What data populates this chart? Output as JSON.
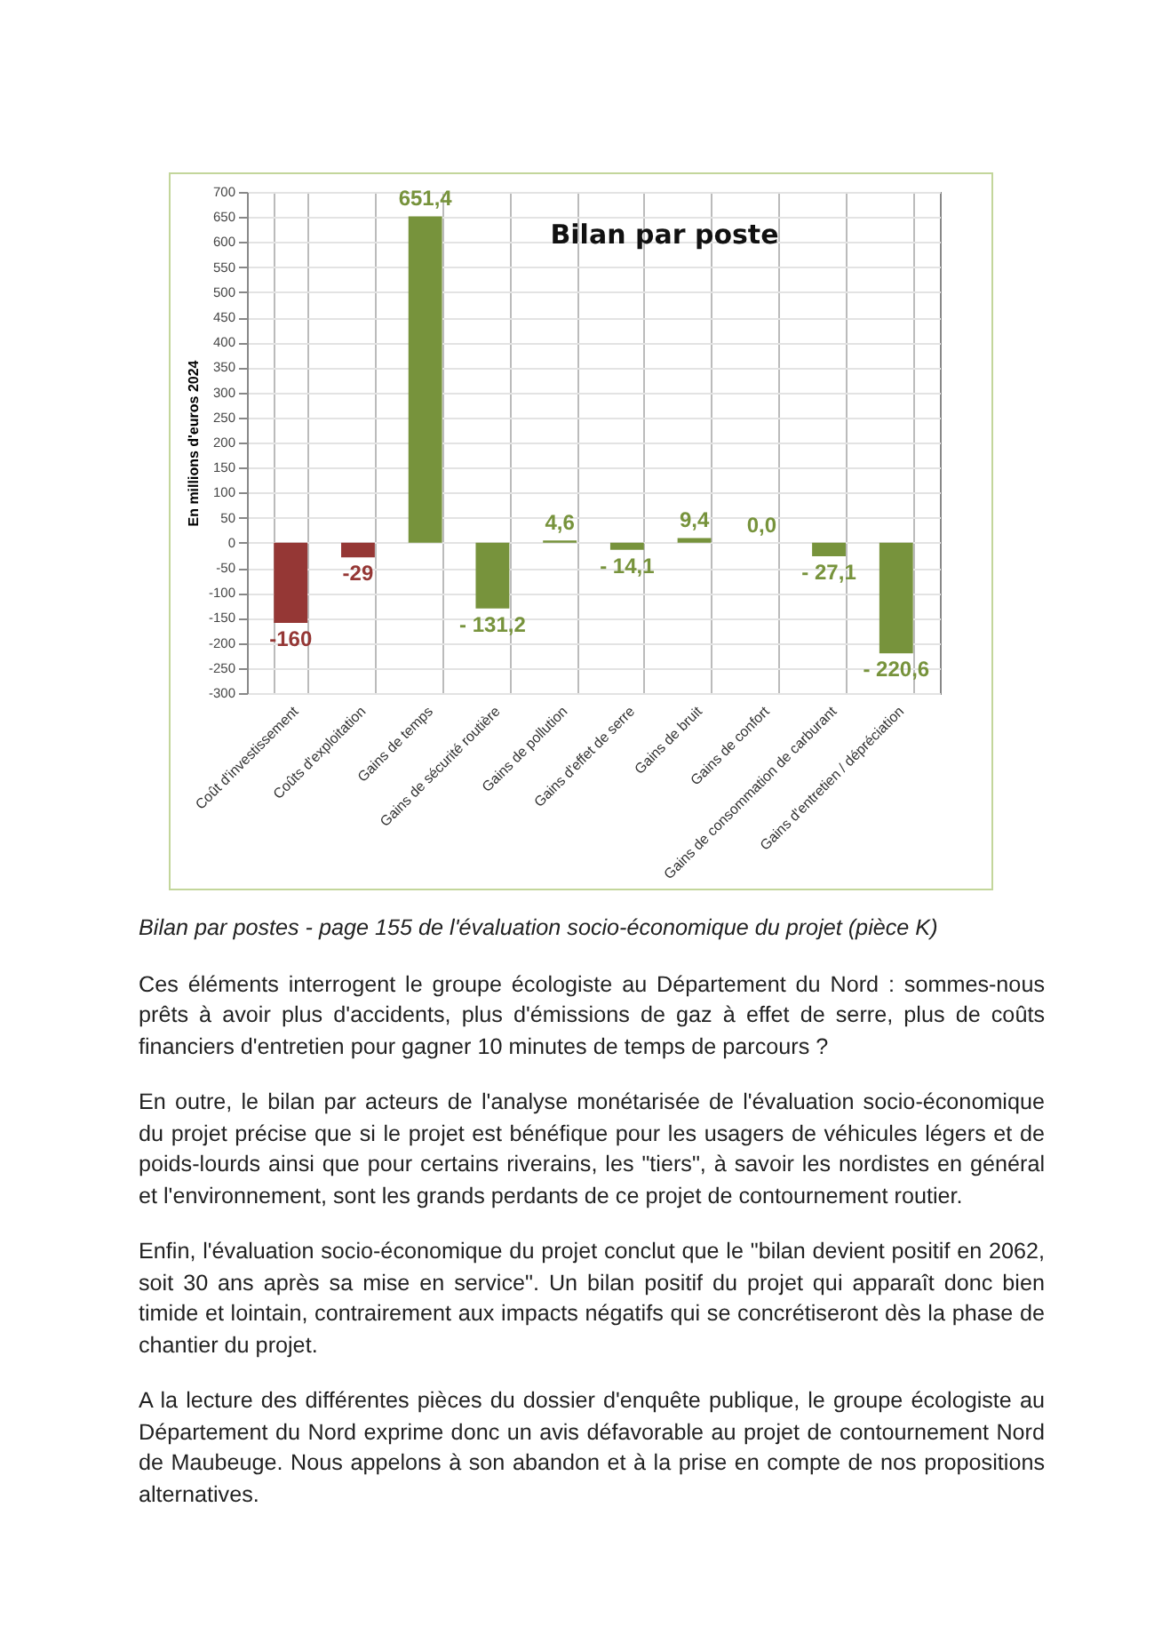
{
  "chart_data": {
    "type": "bar",
    "title": "Bilan par poste",
    "ylabel": "En millions d'euros 2024",
    "categories": [
      "Coût d'investissement",
      "Coûts d'exploitation",
      "Gains de temps",
      "Gains de sécurité routière",
      "Gains de pollution",
      "Gains d'effet de serre",
      "Gains de bruit",
      "Gains de confort",
      "Gains de consommation de carburant",
      "Gains d'entretien / dépréciation"
    ],
    "values": [
      -160,
      -29,
      651.4,
      -131.2,
      4.6,
      -14.1,
      9.4,
      0.0,
      -27.1,
      -220.6
    ],
    "value_labels": [
      "-160",
      "-29",
      "651,4",
      "- 131,2",
      "4,6",
      "- 14,1",
      "9,4",
      "0,0",
      "- 27,1",
      "- 220,6"
    ],
    "colors": [
      "#953735",
      "#953735",
      "#77933c",
      "#77933c",
      "#77933c",
      "#77933c",
      "#77933c",
      "#77933c",
      "#77933c",
      "#77933c"
    ],
    "ylim": [
      -300,
      700
    ],
    "yticks": [
      -300,
      -250,
      -200,
      -150,
      -100,
      -50,
      0,
      50,
      100,
      150,
      200,
      250,
      300,
      350,
      400,
      450,
      500,
      550,
      600,
      650,
      700
    ],
    "grid": true,
    "annotations": [
      "Bilan par postes - page 155 de l'évaluation socio-économique du projet (pièce K)",
      "Ces éléments interrogent le groupe écologiste au Département du Nord : sommes-nous prêts à avoir plus d'accidents, plus d'émissions de gaz à effet de serre, plus de coûts financiers d'entretien pour gagner 10 minutes de temps de parcours ?",
      "En outre, le bilan par acteurs de l'analyse monétarisée de l'évaluation socio-économique du projet précise que si le projet est bénéfique pour les usagers de véhicules légers et de poids-lourds ainsi que pour certains riverains, les \"tiers\", à savoir les nordistes en général et l'environnement, sont les grands perdants de ce projet de contournement routier.",
      "Enfin, l'évaluation socio-économique du projet conclut que le \"bilan devient positif en 2062, soit 30 ans après sa mise en service\". Un bilan positif du projet qui apparaît donc bien timide et lointain, contrairement aux impacts négatifs qui se concrétiseront dès la phase de chantier du projet.",
      "A la lecture des différentes pièces du dossier d'enquête publique, le groupe écologiste au Département du Nord exprime donc un avis défavorable au projet de contournement Nord de Maubeuge. Nous appelons à son abandon et à la prise en compte de nos propositions alternatives."
    ]
  }
}
